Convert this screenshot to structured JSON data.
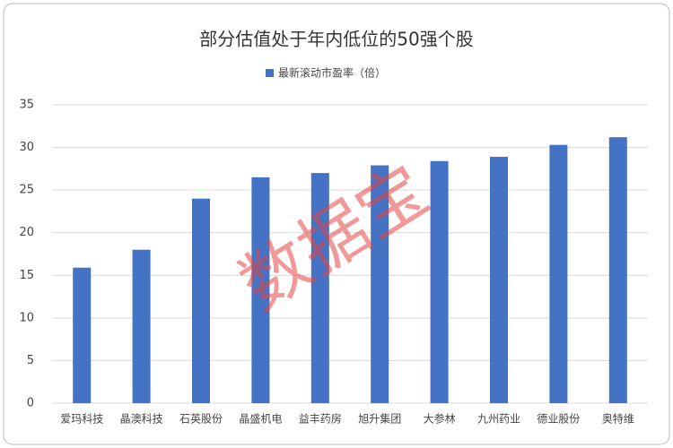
{
  "chart_data": {
    "type": "bar",
    "title": "部分估值处于年内低位的50强个股",
    "watermark": "数据宝",
    "categories": [
      "爱玛科技",
      "晶澳科技",
      "石英股份",
      "晶盛机电",
      "益丰药房",
      "旭升集团",
      "大参林",
      "九州药业",
      "德业股份",
      "奥特维"
    ],
    "series": [
      {
        "name": "最新滚动市盈率（倍）",
        "color": "#4472c4",
        "values": [
          15.9,
          18.0,
          24.0,
          26.5,
          27.0,
          27.9,
          28.4,
          28.9,
          30.3,
          31.2
        ]
      }
    ],
    "ylim": [
      0,
      35
    ],
    "yticks": [
      0,
      5,
      10,
      15,
      20,
      25,
      30,
      35
    ],
    "grid": true,
    "legend": "top"
  }
}
